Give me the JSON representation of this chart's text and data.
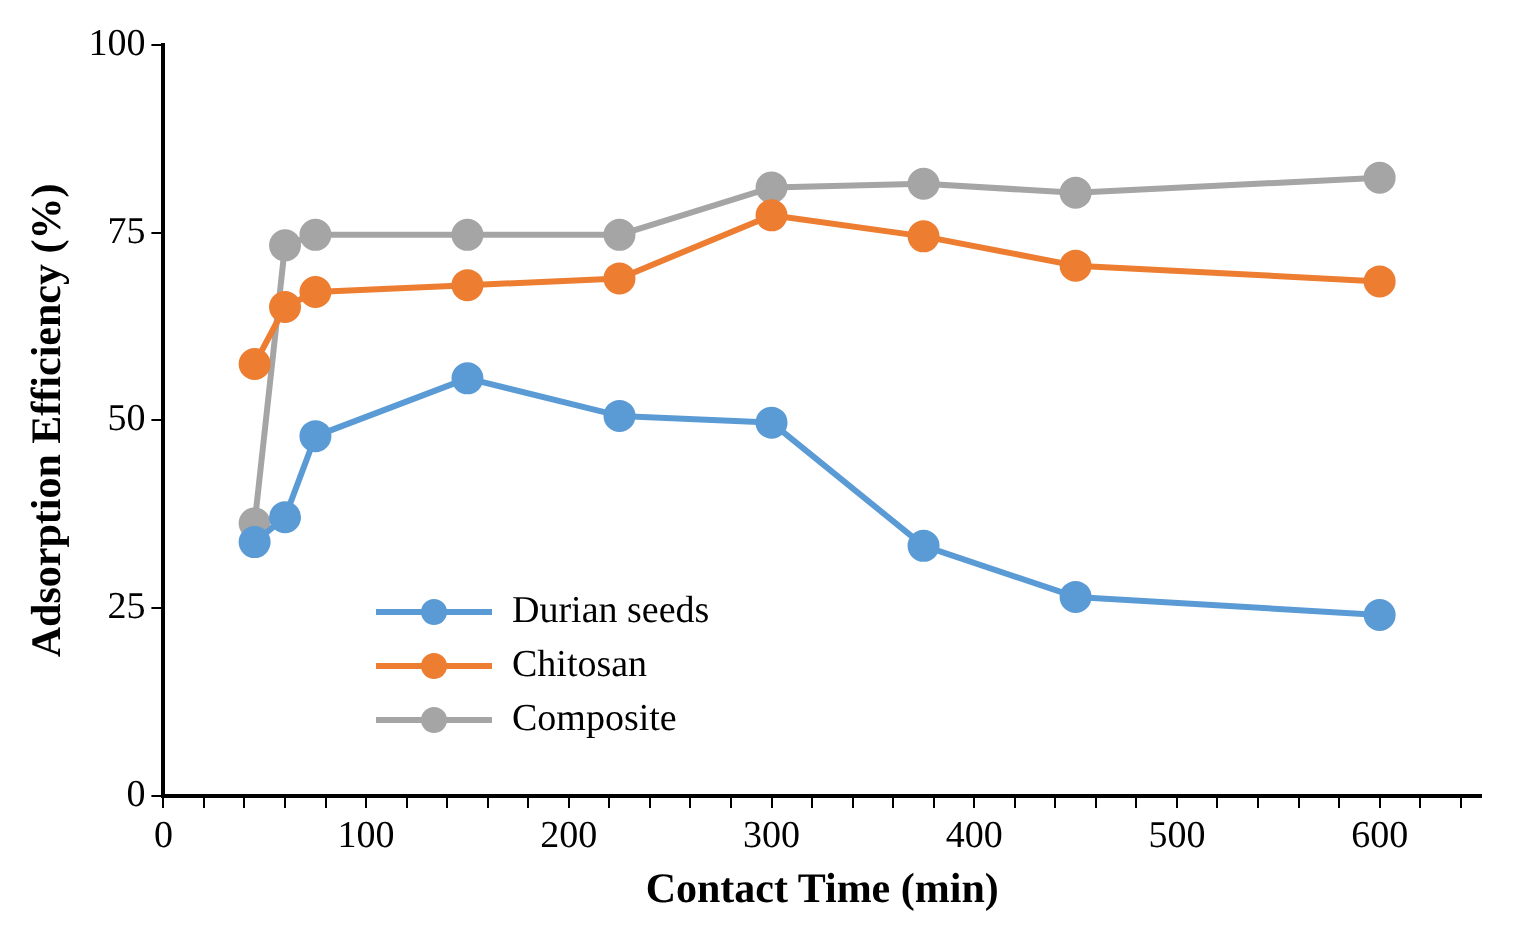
{
  "chart_data": {
    "type": "line",
    "xlabel": "Contact Time (min)",
    "ylabel": "Adsorption Efficiency (%)",
    "x": [
      45,
      60,
      75,
      150,
      225,
      300,
      375,
      450,
      600
    ],
    "series": [
      {
        "name": "Durian seeds",
        "color": "#5b9bd5",
        "values": [
          33.8,
          37.1,
          47.9,
          55.6,
          50.6,
          49.7,
          33.3,
          26.5,
          24.1
        ]
      },
      {
        "name": "Chitosan",
        "color": "#ed7d31",
        "values": [
          57.5,
          65.1,
          67.1,
          68.0,
          68.9,
          77.3,
          74.5,
          70.6,
          68.5
        ]
      },
      {
        "name": "Composite",
        "color": "#a5a5a5",
        "values": [
          36.3,
          73.3,
          74.7,
          74.7,
          74.7,
          81.0,
          81.5,
          80.3,
          82.3
        ]
      }
    ],
    "xlim": [
      0,
      650
    ],
    "xticks": [
      0,
      {
        "value": 20,
        "label": null
      },
      {
        "value": 40,
        "label": null
      },
      {
        "value": 60,
        "label": null
      },
      {
        "value": 80,
        "label": null
      },
      100,
      {
        "value": 120,
        "label": null
      },
      {
        "value": 140,
        "label": null
      },
      {
        "value": 160,
        "label": null
      },
      {
        "value": 180,
        "label": null
      },
      200,
      {
        "value": 220,
        "label": null
      },
      {
        "value": 240,
        "label": null
      },
      {
        "value": 260,
        "label": null
      },
      {
        "value": 280,
        "label": null
      },
      300,
      {
        "value": 320,
        "label": null
      },
      {
        "value": 340,
        "label": null
      },
      {
        "value": 360,
        "label": null
      },
      {
        "value": 380,
        "label": null
      },
      400,
      {
        "value": 420,
        "label": null
      },
      {
        "value": 440,
        "label": null
      },
      {
        "value": 460,
        "label": null
      },
      {
        "value": 480,
        "label": null
      },
      500,
      {
        "value": 520,
        "label": null
      },
      {
        "value": 540,
        "label": null
      },
      {
        "value": 560,
        "label": null
      },
      {
        "value": 580,
        "label": null
      },
      600,
      {
        "value": 620,
        "label": null
      },
      {
        "value": 640,
        "label": null
      }
    ],
    "ylim": [
      0,
      100
    ],
    "yticks": [
      0,
      25,
      50,
      75,
      100
    ],
    "grid": false,
    "legend": "bottom left",
    "marker": "circle",
    "line_style": "solid"
  }
}
